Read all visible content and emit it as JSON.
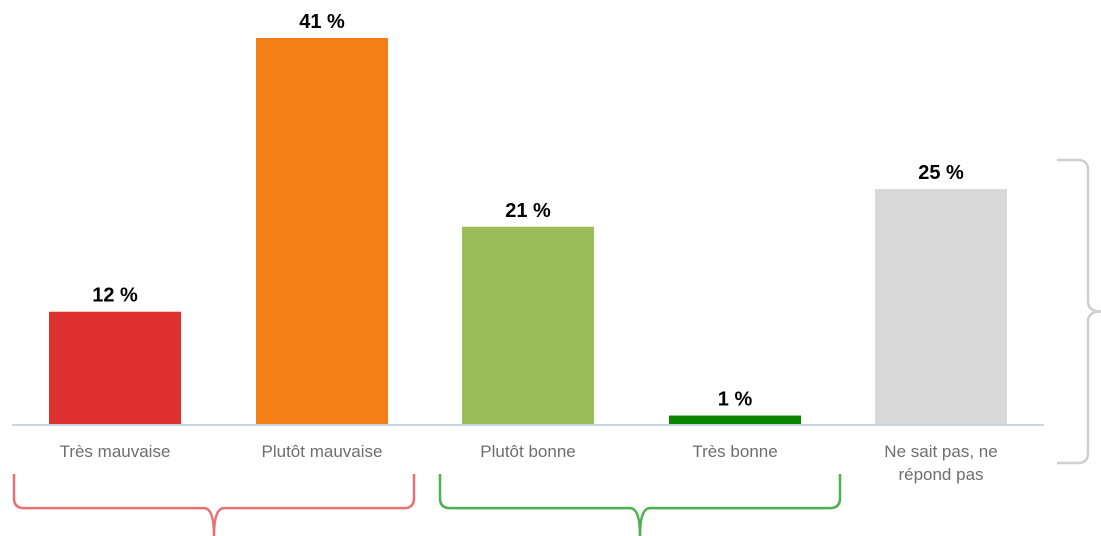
{
  "chart_data": {
    "type": "bar",
    "categories": [
      "Très mauvaise",
      "Plutôt mauvaise",
      "Plutôt bonne",
      "Très bonne",
      "Ne sait pas, ne répond pas"
    ],
    "values": [
      12,
      41,
      21,
      1,
      25
    ],
    "value_labels": [
      "12 %",
      "41 %",
      "21 %",
      "1 %",
      "25 %"
    ],
    "colors": [
      "#e03131",
      "#f57f17",
      "#9cbb59",
      "#0b8500",
      "#d9d9d9"
    ],
    "ylim": [
      0,
      41
    ],
    "grid": false,
    "legend": "none",
    "title": "",
    "xlabel": "",
    "ylabel": "",
    "groups": [
      {
        "color": "#e57373"
      },
      {
        "color": "#4caf50"
      },
      {
        "color": "#cfcfcf"
      }
    ]
  }
}
